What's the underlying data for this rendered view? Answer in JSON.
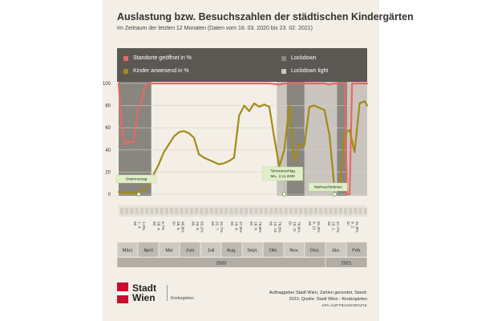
{
  "header": {
    "title": "Auslastung bzw. Besuchszahlen der städtischen Kindergärten",
    "subtitle": "Im Zeitraum der letzten 12 Monaten (Daten vom 16. 03. 2020 bis 23. 02. 2021)"
  },
  "legend": {
    "open": "Standorte geöffnet in %",
    "present": "Kinder anwesend in %",
    "lockdown": "Lockdown",
    "lockdown_light": "Lockdown light"
  },
  "colors": {
    "open": "#e46a63",
    "present": "#a48a18",
    "lockdown": "#6e6a65",
    "lockdown_light": "#a6a29c",
    "accent_box": "#dff0c8"
  },
  "footer": {
    "brand": "Stadt Wien",
    "brand_line1": "Stadt",
    "brand_line2": "Wien",
    "unit": "Kindergärten",
    "credit": "Auftraggeber Stadt Wien, Zahlen gerundet, Stand: 2021; Quelle: Stadt Wien - Kindergärten",
    "agency": "APA-AUFTRAGSGRAFIK"
  },
  "chart_data": {
    "type": "line",
    "title": "Auslastung bzw. Besuchszahlen der städtischen Kindergärten",
    "ylim": [
      0,
      100
    ],
    "yticks": [
      0,
      20,
      40,
      60,
      80,
      100
    ],
    "x_unit": "weeks since 16.03.2020",
    "xlim": [
      0,
      49.5
    ],
    "series": [
      {
        "name": "Standorte geöffnet in %",
        "x": [
          0,
          0.6,
          1.2,
          2,
          3,
          3.6,
          4,
          4.6,
          5.2,
          6,
          7,
          8,
          10,
          14,
          18,
          22,
          26,
          30,
          32,
          33,
          34,
          35,
          36,
          37,
          38,
          39,
          40,
          41,
          42,
          43,
          44,
          45,
          45.5,
          46,
          46.5,
          47,
          48,
          49.5
        ],
        "values": [
          100,
          60,
          45,
          47,
          47,
          70,
          78,
          85,
          97,
          100,
          100,
          100,
          100,
          100,
          100,
          100,
          100,
          100,
          99,
          100,
          100,
          100,
          100,
          100,
          100,
          100,
          100,
          100,
          99,
          100,
          100,
          100,
          0,
          0,
          100,
          100,
          100,
          100
        ]
      },
      {
        "name": "Kinder anwesend in %",
        "x": [
          0,
          1,
          2,
          3,
          4,
          5,
          6,
          7,
          8,
          9,
          10,
          11,
          12,
          13,
          14,
          15,
          16,
          17,
          18,
          19,
          20,
          21,
          22,
          23,
          24,
          25,
          26,
          27,
          28,
          29,
          30,
          31,
          32,
          33,
          34,
          35,
          36,
          37,
          38,
          39,
          40,
          41,
          42,
          43,
          44,
          45,
          46,
          47,
          48,
          49,
          49.5
        ],
        "values": [
          2,
          1,
          1,
          1,
          2,
          4,
          8,
          18,
          27,
          38,
          45,
          52,
          56,
          57,
          55,
          51,
          36,
          33,
          31,
          29,
          27,
          28,
          30,
          33,
          71,
          80,
          75,
          82,
          79,
          81,
          79,
          51,
          25,
          40,
          80,
          30,
          45,
          44,
          79,
          80,
          78,
          76,
          53,
          5,
          3,
          55,
          58,
          38,
          82,
          84,
          80
        ]
      }
    ],
    "lockdown_ranges": [
      [
        0,
        6.5
      ],
      [
        33.5,
        37
      ],
      [
        43.5,
        45.5
      ]
    ],
    "lockdown_light_ranges": [
      [
        31.5,
        33.5
      ],
      [
        37,
        43.5
      ],
      [
        45.5,
        49.5
      ]
    ],
    "annotations": [
      {
        "label": "Ostermontag",
        "x": 4
      },
      {
        "label": "Terroranschlag",
        "label2": "Mo., 2.11.2020",
        "x": 33
      },
      {
        "label": "Weihnachtsferien",
        "x": 43
      }
    ],
    "sample_labels": [
      {
        "line1": "Mi.",
        "line2": "1. 4.",
        "line3": "1,0%"
      },
      {
        "line1": "Mi.",
        "line2": "29. 4.",
        "line3": "6,7%"
      },
      {
        "line1": "Di.",
        "line2": "26. 5.",
        "line3": "45,9%"
      },
      {
        "line1": "Mi.",
        "line2": "24. 6.",
        "line3": "52,1%"
      },
      {
        "line1": "Mi.",
        "line2": "22. 7.",
        "line3": "31,7%"
      },
      {
        "line1": "Mi.",
        "line2": "19. 8.",
        "line3": "27,6%"
      },
      {
        "line1": "Mi.",
        "line2": "16. 9.",
        "line3": "79,9%"
      },
      {
        "line1": "Mi.",
        "line2": "14. 10.",
        "line3": "79,3%"
      },
      {
        "line1": "Di.",
        "line2": "10. 11.",
        "line3": "79,6%"
      },
      {
        "line1": "Mi.",
        "line2": "9. 12.",
        "line3": "81,0%"
      },
      {
        "line1": "Mi.",
        "line2": "13. 1.",
        "line3": "57,7%"
      },
      {
        "line1": "Di.",
        "line2": "9. 2.",
        "line3": "81,8%"
      }
    ],
    "months": [
      "März",
      "April",
      "Mai",
      "Juni",
      "Juli",
      "Aug.",
      "Sept.",
      "Okt.",
      "Nov.",
      "Dez.",
      "Jän.",
      "Feb."
    ],
    "years": [
      "2020",
      "2021"
    ]
  }
}
